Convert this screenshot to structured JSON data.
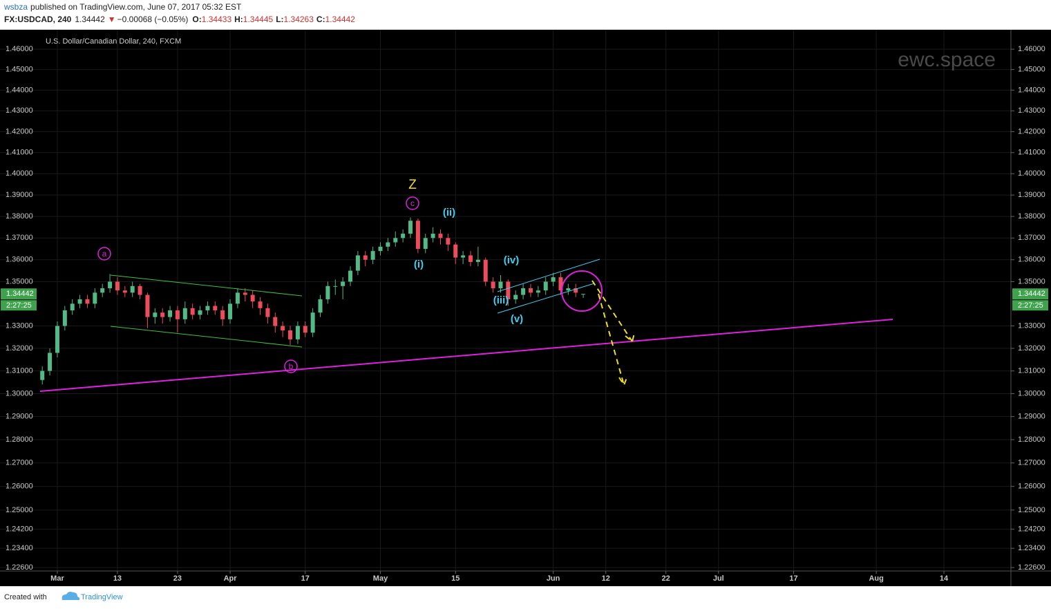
{
  "header": {
    "publisher": "wsbza",
    "published": "published on TradingView.com, June 07, 2017 05:32 EST",
    "symbol": "FX:USDCAD, 240",
    "change": "−0.00068 (−0.05%)",
    "ohlc_labels": [
      "O:",
      "H:",
      "L:",
      "C:"
    ],
    "ohlc": [
      1.34433,
      1.34445,
      1.34263,
      1.34442
    ]
  },
  "footer": {
    "created": "Created with",
    "brand": "TradingView"
  },
  "chart_data": {
    "type": "candlestick",
    "title": "U.S. Dollar/Canadian Dollar, 240, FXCM",
    "watermark": "ewc.space",
    "log_scale": true,
    "grid": true,
    "up_color": "#53b987",
    "down_color": "#eb4d5c",
    "last_price": 1.34442,
    "countdown": "2:27:25",
    "xlim": [
      -5.63,
      128.92
    ],
    "ylim": [
      1.2246,
      1.4696
    ],
    "xticks": [
      {
        "value": 2,
        "label": "Mar"
      },
      {
        "value": 10,
        "label": "13"
      },
      {
        "value": 18,
        "label": "23"
      },
      {
        "value": 25,
        "label": "Apr"
      },
      {
        "value": 35,
        "label": "17"
      },
      {
        "value": 45,
        "label": "May"
      },
      {
        "value": 55,
        "label": "15"
      },
      {
        "value": 68,
        "label": "Jun"
      },
      {
        "value": 75,
        "label": "12"
      },
      {
        "value": 83,
        "label": "22"
      },
      {
        "value": 90,
        "label": "Jul"
      },
      {
        "value": 100,
        "label": "17"
      },
      {
        "value": 111,
        "label": "Aug"
      },
      {
        "value": 120,
        "label": "14"
      }
    ],
    "yticks": [
      {
        "value": 1.46,
        "label": "1.46000"
      },
      {
        "value": 1.45,
        "label": "1.45000"
      },
      {
        "value": 1.44,
        "label": "1.44000"
      },
      {
        "value": 1.43,
        "label": "1.43000"
      },
      {
        "value": 1.42,
        "label": "1.42000"
      },
      {
        "value": 1.41,
        "label": "1.41000"
      },
      {
        "value": 1.4,
        "label": "1.40000"
      },
      {
        "value": 1.39,
        "label": "1.39000"
      },
      {
        "value": 1.38,
        "label": "1.38000"
      },
      {
        "value": 1.37,
        "label": "1.37000"
      },
      {
        "value": 1.36,
        "label": "1.36000"
      },
      {
        "value": 1.35,
        "label": "1.35000"
      },
      {
        "value": 1.33,
        "label": "1.33000"
      },
      {
        "value": 1.32,
        "label": "1.32000"
      },
      {
        "value": 1.31,
        "label": "1.31000"
      },
      {
        "value": 1.3,
        "label": "1.30000"
      },
      {
        "value": 1.29,
        "label": "1.29000"
      },
      {
        "value": 1.28,
        "label": "1.28000"
      },
      {
        "value": 1.27,
        "label": "1.27000"
      },
      {
        "value": 1.26,
        "label": "1.26000"
      },
      {
        "value": 1.25,
        "label": "1.25000"
      },
      {
        "value": 1.242,
        "label": "1.24200"
      },
      {
        "value": 1.234,
        "label": "1.23400"
      },
      {
        "value": 1.226,
        "label": "1.22600"
      }
    ],
    "x": [
      0,
      1,
      2,
      3,
      4,
      5,
      6,
      7,
      8,
      9,
      10,
      11,
      12,
      13,
      14,
      15,
      16,
      17,
      18,
      19,
      20,
      21,
      22,
      23,
      24,
      25,
      26,
      27,
      28,
      29,
      30,
      31,
      32,
      33,
      34,
      35,
      36,
      37,
      38,
      39,
      40,
      41,
      42,
      43,
      44,
      45,
      46,
      47,
      48,
      49,
      50,
      51,
      52,
      53,
      54,
      55,
      56,
      57,
      58,
      59,
      60,
      61,
      62,
      63,
      64,
      65,
      66,
      67,
      68,
      69,
      70,
      71,
      72
    ],
    "open": [
      1.306,
      1.31,
      1.318,
      1.33,
      1.337,
      1.34,
      1.342,
      1.34,
      1.345,
      1.347,
      1.35,
      1.346,
      1.345,
      1.348,
      1.344,
      1.334,
      1.336,
      1.334,
      1.337,
      1.333,
      1.338,
      1.335,
      1.337,
      1.339,
      1.337,
      1.333,
      1.34,
      1.345,
      1.344,
      1.341,
      1.338,
      1.334,
      1.33,
      1.328,
      1.324,
      1.33,
      1.327,
      1.336,
      1.342,
      1.348,
      1.348,
      1.35,
      1.355,
      1.362,
      1.36,
      1.364,
      1.366,
      1.368,
      1.37,
      1.372,
      1.378,
      1.365,
      1.37,
      1.372,
      1.37,
      1.367,
      1.361,
      1.362,
      1.359,
      1.36,
      1.35,
      1.347,
      1.35,
      1.342,
      1.344,
      1.347,
      1.345,
      1.346,
      1.35,
      1.352,
      1.346,
      1.347,
      1.34433
    ],
    "high": [
      1.312,
      1.32,
      1.332,
      1.339,
      1.342,
      1.344,
      1.344,
      1.347,
      1.349,
      1.3535,
      1.352,
      1.348,
      1.35,
      1.349,
      1.345,
      1.338,
      1.338,
      1.339,
      1.339,
      1.341,
      1.34,
      1.339,
      1.341,
      1.341,
      1.339,
      1.342,
      1.347,
      1.347,
      1.346,
      1.343,
      1.34,
      1.336,
      1.332,
      1.33,
      1.332,
      1.332,
      1.338,
      1.344,
      1.35,
      1.351,
      1.352,
      1.357,
      1.364,
      1.364,
      1.366,
      1.368,
      1.37,
      1.373,
      1.374,
      1.3795,
      1.379,
      1.372,
      1.375,
      1.374,
      1.372,
      1.368,
      1.364,
      1.364,
      1.366,
      1.361,
      1.352,
      1.353,
      1.351,
      1.346,
      1.349,
      1.349,
      1.348,
      1.352,
      1.354,
      1.354,
      1.349,
      1.349,
      1.34445
    ],
    "low": [
      1.304,
      1.308,
      1.316,
      1.328,
      1.335,
      1.338,
      1.338,
      1.338,
      1.343,
      1.345,
      1.344,
      1.343,
      1.343,
      1.342,
      1.329,
      1.331,
      1.331,
      1.332,
      1.327,
      1.331,
      1.333,
      1.333,
      1.335,
      1.335,
      1.33,
      1.331,
      1.338,
      1.341,
      1.338,
      1.335,
      1.331,
      1.327,
      1.325,
      1.3215,
      1.322,
      1.325,
      1.325,
      1.334,
      1.34,
      1.344,
      1.342,
      1.348,
      1.353,
      1.357,
      1.358,
      1.362,
      1.364,
      1.366,
      1.368,
      1.37,
      1.363,
      1.363,
      1.368,
      1.367,
      1.364,
      1.358,
      1.358,
      1.357,
      1.357,
      1.348,
      1.345,
      1.345,
      1.339,
      1.34,
      1.342,
      1.343,
      1.343,
      1.344,
      1.348,
      1.344,
      1.344,
      1.343,
      1.34263
    ],
    "close": [
      1.31,
      1.318,
      1.33,
      1.337,
      1.34,
      1.342,
      1.34,
      1.345,
      1.347,
      1.35,
      1.346,
      1.345,
      1.348,
      1.344,
      1.334,
      1.336,
      1.334,
      1.337,
      1.333,
      1.338,
      1.335,
      1.337,
      1.339,
      1.337,
      1.333,
      1.34,
      1.345,
      1.344,
      1.341,
      1.338,
      1.334,
      1.33,
      1.328,
      1.324,
      1.33,
      1.327,
      1.336,
      1.342,
      1.348,
      1.348,
      1.35,
      1.355,
      1.362,
      1.36,
      1.364,
      1.366,
      1.368,
      1.37,
      1.372,
      1.378,
      1.365,
      1.37,
      1.372,
      1.37,
      1.367,
      1.361,
      1.362,
      1.359,
      1.36,
      1.35,
      1.347,
      1.35,
      1.342,
      1.344,
      1.347,
      1.345,
      1.346,
      1.35,
      1.352,
      1.346,
      1.347,
      1.345,
      1.34442
    ],
    "annotations": [
      "Z",
      "c",
      "a",
      "b",
      "(ii)",
      "(i)",
      "(iv)",
      "(iii)",
      "(v)"
    ]
  }
}
